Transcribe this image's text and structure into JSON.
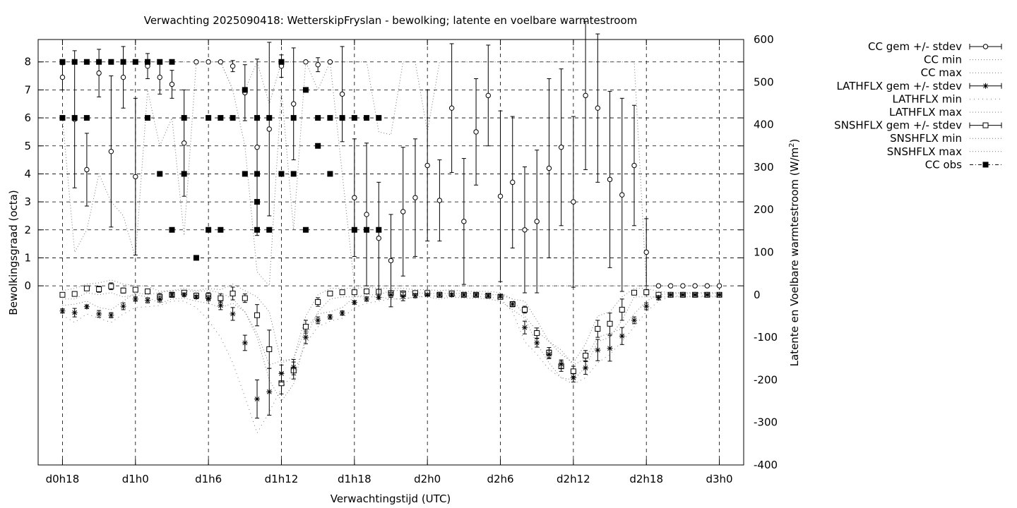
{
  "chart_data": {
    "type": "line",
    "title": "Verwachting 2025090418: WetterskipFryslan - bewolking; latente en voelbare warmtestroom",
    "xlabel": "Verwachtingstijd (UTC)",
    "ylabel": "Bewolkingsgraad (octa)",
    "y2label": "Latente en Voelbare warmtestroom (W/m",
    "y2label_sup": "2",
    "y2label_end": ")",
    "x_tick_labels": [
      "d0h18",
      "d1h0",
      "d1h6",
      "d1h12",
      "d1h18",
      "d2h0",
      "d2h6",
      "d2h12",
      "d2h18",
      "d3h0"
    ],
    "x_tick_hours": [
      18,
      24,
      30,
      36,
      42,
      48,
      54,
      60,
      66,
      72
    ],
    "xlim": [
      16,
      74
    ],
    "ylim": [
      -6.4,
      8.8
    ],
    "y_ticks": [
      0,
      1,
      2,
      3,
      4,
      5,
      6,
      7,
      8
    ],
    "y2lim": [
      -400,
      600
    ],
    "y2_ticks": [
      -400,
      -300,
      -200,
      -100,
      0,
      100,
      200,
      300,
      400,
      500,
      600
    ],
    "grid": "dashed at y tick values and x ticks",
    "legend_position": "outside-right-top",
    "legend": [
      {
        "label": "CC gem +/- stdev",
        "style": "errorbar-circle"
      },
      {
        "label": "CC min",
        "style": "dotted"
      },
      {
        "label": "CC max",
        "style": "dotted"
      },
      {
        "label": "LATHFLX gem +/- stdev",
        "style": "errorbar-star"
      },
      {
        "label": "LATHFLX min",
        "style": "dotted-sparse"
      },
      {
        "label": "LATHFLX max",
        "style": "dotted"
      },
      {
        "label": "SNSHFLX gem +/- stdev",
        "style": "errorbar-square"
      },
      {
        "label": "SNSHFLX min",
        "style": "dotted"
      },
      {
        "label": "SNSHFLX max",
        "style": "dotted"
      },
      {
        "label": "CC obs",
        "style": "dashdot-filled-square"
      }
    ],
    "cc_mean": {
      "x": [
        18,
        19,
        20,
        21,
        22,
        23,
        24,
        25,
        26,
        27,
        28,
        29,
        30,
        31,
        32,
        33,
        34,
        35,
        36,
        37,
        38,
        39,
        40,
        41,
        42,
        43,
        44,
        45,
        46,
        47,
        48,
        49,
        50,
        51,
        52,
        53,
        54,
        55,
        56,
        57,
        58,
        59,
        60,
        61,
        62,
        63,
        64,
        65,
        66,
        67,
        68,
        69,
        70,
        71,
        72
      ],
      "y": [
        7.45,
        5.95,
        4.15,
        7.6,
        4.8,
        7.45,
        3.9,
        7.85,
        7.45,
        7.2,
        5.1,
        8.0,
        8.0,
        8.0,
        7.85,
        6.9,
        4.95,
        5.6,
        7.85,
        6.5,
        8.0,
        7.9,
        8.0,
        6.85,
        3.15,
        2.55,
        1.7,
        0.9,
        2.65,
        3.15,
        4.3,
        3.05,
        6.35,
        2.3,
        5.5,
        6.8,
        3.2,
        3.7,
        2.0,
        2.3,
        4.2,
        4.95,
        3.0,
        6.8,
        6.35,
        3.8,
        3.25,
        4.3,
        1.2,
        0,
        0,
        0,
        0,
        0,
        0
      ],
      "sd": [
        0.45,
        2.45,
        1.3,
        0.85,
        2.7,
        1.1,
        2.8,
        0.45,
        0.6,
        0.5,
        1.9,
        0,
        0,
        0,
        0.2,
        1.0,
        3.15,
        3.1,
        0.4,
        2.0,
        0,
        0.25,
        0,
        1.7,
        2.1,
        2.55,
        2.0,
        1.65,
        2.3,
        2.1,
        2.7,
        1.45,
        2.3,
        2.25,
        1.9,
        1.8,
        3.05,
        2.35,
        2.25,
        2.55,
        3.2,
        2.8,
        3.05,
        2.65,
        2.65,
        3.15,
        3.45,
        2.15,
        1.2,
        0,
        0,
        0,
        0,
        0,
        0
      ]
    },
    "cc_min": {
      "x": [
        18,
        19,
        20,
        21,
        22,
        23,
        24,
        25,
        26,
        27,
        28,
        29,
        30,
        31,
        32,
        33,
        34,
        35,
        36,
        37,
        38,
        39,
        40,
        41,
        42,
        43,
        44,
        45,
        46,
        47,
        48,
        49,
        50,
        51,
        52,
        53,
        54,
        55,
        56,
        57,
        58,
        59,
        60,
        61,
        62,
        63,
        64,
        65,
        66,
        67,
        68,
        69,
        70,
        71,
        72
      ],
      "y": [
        6,
        1.2,
        2,
        4,
        3,
        2.5,
        1,
        7,
        5,
        6,
        1.8,
        8,
        8,
        8,
        7,
        5,
        0.5,
        0,
        7,
        2,
        8,
        7,
        8,
        4,
        0,
        0,
        0,
        0,
        0,
        0,
        0,
        0,
        0,
        0,
        0,
        0,
        0,
        0,
        0,
        0,
        0,
        0,
        0,
        0,
        0,
        0,
        0,
        0,
        0,
        0,
        0,
        0,
        0,
        0,
        0
      ]
    },
    "cc_max": {
      "x": [
        18,
        19,
        20,
        21,
        22,
        23,
        24,
        25,
        26,
        27,
        28,
        29,
        30,
        31,
        32,
        33,
        34,
        35,
        36,
        37,
        38,
        39,
        40,
        41,
        42,
        43,
        44,
        45,
        46,
        47,
        48,
        49,
        50,
        51,
        52,
        53,
        54,
        55,
        56,
        57,
        58,
        59,
        60,
        61,
        62,
        63,
        64,
        65,
        66,
        67,
        68,
        69,
        70,
        71,
        72
      ],
      "y": [
        8,
        8,
        8,
        8,
        8,
        8,
        8,
        8,
        8,
        8,
        8,
        8,
        8,
        8,
        7,
        7,
        8,
        6.5,
        8,
        8,
        8,
        8,
        8,
        8,
        8,
        8,
        5.5,
        5.4,
        8,
        8,
        5.5,
        8,
        8,
        8,
        8,
        8,
        8,
        8,
        8,
        8,
        8,
        8,
        8,
        8,
        8,
        8,
        8,
        8,
        0,
        0,
        0,
        0,
        0,
        0,
        0
      ]
    },
    "lath_mean": {
      "x": [
        18,
        19,
        20,
        21,
        22,
        23,
        24,
        25,
        26,
        27,
        28,
        29,
        30,
        31,
        32,
        33,
        34,
        35,
        36,
        37,
        38,
        39,
        40,
        41,
        42,
        43,
        44,
        45,
        46,
        47,
        48,
        49,
        50,
        51,
        52,
        53,
        54,
        55,
        56,
        57,
        58,
        59,
        60,
        61,
        62,
        63,
        64,
        65,
        66,
        67,
        68,
        69,
        70,
        71,
        72
      ],
      "y": [
        -38,
        -42,
        -28,
        -45,
        -48,
        -27,
        -10,
        -13,
        -10,
        0,
        0,
        -5,
        -8,
        -25,
        -45,
        -113,
        -245,
        -228,
        -185,
        -170,
        -100,
        -60,
        -52,
        -43,
        -18,
        -10,
        -6,
        0,
        -4,
        -2,
        0,
        0,
        0,
        0,
        0,
        -2,
        -3,
        -22,
        -77,
        -113,
        -140,
        -163,
        -195,
        -172,
        -130,
        -126,
        -97,
        -60,
        -27,
        -7,
        0,
        0,
        0,
        0,
        0
      ],
      "sd": [
        5,
        10,
        4,
        8,
        6,
        8,
        5,
        6,
        7,
        4,
        4,
        4,
        6,
        10,
        15,
        18,
        45,
        55,
        20,
        18,
        15,
        8,
        5,
        5,
        4,
        5,
        4,
        6,
        10,
        5,
        3,
        3,
        4,
        3,
        3,
        3,
        4,
        6,
        15,
        10,
        10,
        10,
        10,
        15,
        25,
        30,
        20,
        8,
        8,
        5,
        2,
        2,
        2,
        2,
        2
      ]
    },
    "lath_min": {
      "x": [
        18,
        19,
        20,
        21,
        22,
        23,
        24,
        25,
        26,
        27,
        28,
        29,
        30,
        31,
        32,
        33,
        34,
        35,
        36,
        37,
        38,
        39,
        40,
        41,
        42,
        43,
        44,
        45,
        46,
        47,
        48,
        49,
        50,
        51,
        52,
        53,
        54,
        55,
        56,
        57,
        58,
        59,
        60,
        61,
        62,
        63,
        64,
        65,
        66,
        67,
        68,
        69,
        70,
        71,
        72
      ],
      "y": [
        -48,
        -65,
        -45,
        -55,
        -65,
        -45,
        -30,
        -28,
        -25,
        -15,
        -15,
        -30,
        -60,
        -100,
        -160,
        -240,
        -325,
        -275,
        -220,
        -185,
        -115,
        -75,
        -62,
        -55,
        -30,
        -20,
        -15,
        -10,
        -10,
        -5,
        -3,
        -3,
        -3,
        -3,
        -3,
        -6,
        -8,
        -40,
        -110,
        -140,
        -175,
        -195,
        -210,
        -195,
        -160,
        -140,
        -110,
        -75,
        -40,
        -15,
        -3,
        -3,
        -3,
        -3,
        -3
      ]
    },
    "lath_max": {
      "x": [
        18,
        19,
        20,
        21,
        22,
        23,
        24,
        25,
        26,
        27,
        28,
        29,
        30,
        31,
        32,
        33,
        34,
        35,
        36,
        37,
        38,
        39,
        40,
        41,
        42,
        43,
        44,
        45,
        46,
        47,
        48,
        49,
        50,
        51,
        52,
        53,
        54,
        55,
        56,
        57,
        58,
        59,
        60,
        61,
        62,
        63,
        64,
        65,
        66,
        67,
        68,
        69,
        70,
        71,
        72
      ],
      "y": [
        -25,
        -22,
        -15,
        -30,
        -35,
        -15,
        5,
        0,
        5,
        10,
        10,
        8,
        10,
        5,
        -10,
        -40,
        -90,
        -165,
        -155,
        -150,
        -80,
        -45,
        -40,
        -30,
        -5,
        0,
        0,
        10,
        10,
        5,
        3,
        3,
        3,
        3,
        3,
        0,
        0,
        -10,
        -50,
        -85,
        -110,
        -130,
        -165,
        -150,
        -100,
        -90,
        -80,
        -45,
        -15,
        0,
        3,
        3,
        3,
        3,
        3
      ]
    },
    "snsh_mean": {
      "x": [
        18,
        19,
        20,
        21,
        22,
        23,
        24,
        25,
        26,
        27,
        28,
        29,
        30,
        31,
        32,
        33,
        34,
        35,
        36,
        37,
        38,
        39,
        40,
        41,
        42,
        43,
        44,
        45,
        46,
        47,
        48,
        49,
        50,
        51,
        52,
        53,
        54,
        55,
        56,
        57,
        58,
        59,
        60,
        61,
        62,
        63,
        64,
        65,
        66,
        67,
        68,
        69,
        70,
        71,
        72
      ],
      "y": [
        0,
        2,
        15,
        13,
        20,
        10,
        12,
        8,
        -5,
        0,
        5,
        -2,
        -3,
        -8,
        3,
        -8,
        -48,
        -128,
        -208,
        -178,
        -75,
        -17,
        3,
        6,
        6,
        8,
        7,
        4,
        3,
        4,
        4,
        0,
        3,
        0,
        0,
        -2,
        -5,
        -22,
        -35,
        -90,
        -136,
        -168,
        -180,
        -143,
        -80,
        -68,
        -35,
        5,
        6,
        0,
        0,
        0,
        0,
        0,
        0
      ],
      "sd": [
        3,
        5,
        5,
        7,
        8,
        6,
        5,
        5,
        8,
        6,
        5,
        6,
        8,
        10,
        15,
        10,
        25,
        45,
        25,
        20,
        15,
        10,
        5,
        5,
        5,
        5,
        5,
        5,
        6,
        4,
        5,
        6,
        6,
        4,
        4,
        4,
        4,
        6,
        8,
        12,
        12,
        12,
        12,
        12,
        20,
        25,
        25,
        5,
        6,
        4,
        4,
        4,
        4,
        4,
        4
      ]
    },
    "snsh_min": {
      "x": [
        18,
        19,
        20,
        21,
        22,
        23,
        24,
        25,
        26,
        27,
        28,
        29,
        30,
        31,
        32,
        33,
        34,
        35,
        36,
        37,
        38,
        39,
        40,
        41,
        42,
        43,
        44,
        45,
        46,
        47,
        48,
        49,
        50,
        51,
        52,
        53,
        54,
        55,
        56,
        57,
        58,
        59,
        60,
        61,
        62,
        63,
        64,
        65,
        66,
        67,
        68,
        69,
        70,
        71,
        72
      ],
      "y": [
        -10,
        -10,
        5,
        0,
        5,
        -5,
        0,
        -5,
        -20,
        -10,
        -8,
        -15,
        -20,
        -30,
        -20,
        -40,
        -100,
        -200,
        -250,
        -210,
        -100,
        -40,
        -10,
        -5,
        -5,
        -5,
        -5,
        -10,
        -10,
        -5,
        -5,
        -10,
        -5,
        -8,
        -8,
        -10,
        -15,
        -35,
        -55,
        -115,
        -160,
        -195,
        -200,
        -170,
        -110,
        -100,
        -60,
        -5,
        -5,
        -5,
        -5,
        -5,
        -5,
        -5,
        -5
      ]
    },
    "snsh_max": {
      "x": [
        18,
        19,
        20,
        21,
        22,
        23,
        24,
        25,
        26,
        27,
        28,
        29,
        30,
        31,
        32,
        33,
        34,
        35,
        36,
        37,
        38,
        39,
        40,
        41,
        42,
        43,
        44,
        45,
        46,
        47,
        48,
        49,
        50,
        51,
        52,
        53,
        54,
        55,
        56,
        57,
        58,
        59,
        60,
        61,
        62,
        63,
        64,
        65,
        66,
        67,
        68,
        69,
        70,
        71,
        72
      ],
      "y": [
        10,
        15,
        25,
        28,
        35,
        25,
        22,
        20,
        8,
        10,
        15,
        10,
        15,
        12,
        25,
        10,
        -5,
        -40,
        -160,
        -150,
        -50,
        0,
        15,
        15,
        15,
        18,
        15,
        15,
        15,
        12,
        12,
        10,
        12,
        8,
        8,
        8,
        5,
        -10,
        -15,
        -60,
        -110,
        -140,
        -160,
        -115,
        -50,
        -40,
        -5,
        15,
        15,
        8,
        5,
        5,
        5,
        5,
        5
      ]
    },
    "cc_obs": {
      "x": [
        18,
        18,
        19,
        19,
        20,
        20,
        21,
        22,
        23,
        24,
        25,
        25,
        26,
        26,
        27,
        27,
        28,
        28,
        29,
        30,
        30,
        31,
        31,
        32,
        33,
        33,
        34,
        34,
        34,
        34,
        35,
        35,
        36,
        36,
        37,
        37,
        38,
        38,
        39,
        39,
        40,
        40,
        41,
        42,
        42,
        43,
        43,
        44,
        44
      ],
      "y": [
        8,
        6,
        8,
        6,
        8,
        6,
        8,
        8,
        8,
        8,
        8,
        6,
        8,
        4,
        8,
        2,
        6,
        4,
        1,
        6,
        2,
        6,
        2,
        6,
        7,
        4,
        6,
        4,
        3,
        2,
        6,
        2,
        8,
        4,
        6,
        4,
        7,
        2,
        6,
        5,
        6,
        4,
        6,
        6,
        2,
        6,
        2,
        6,
        2
      ]
    }
  }
}
